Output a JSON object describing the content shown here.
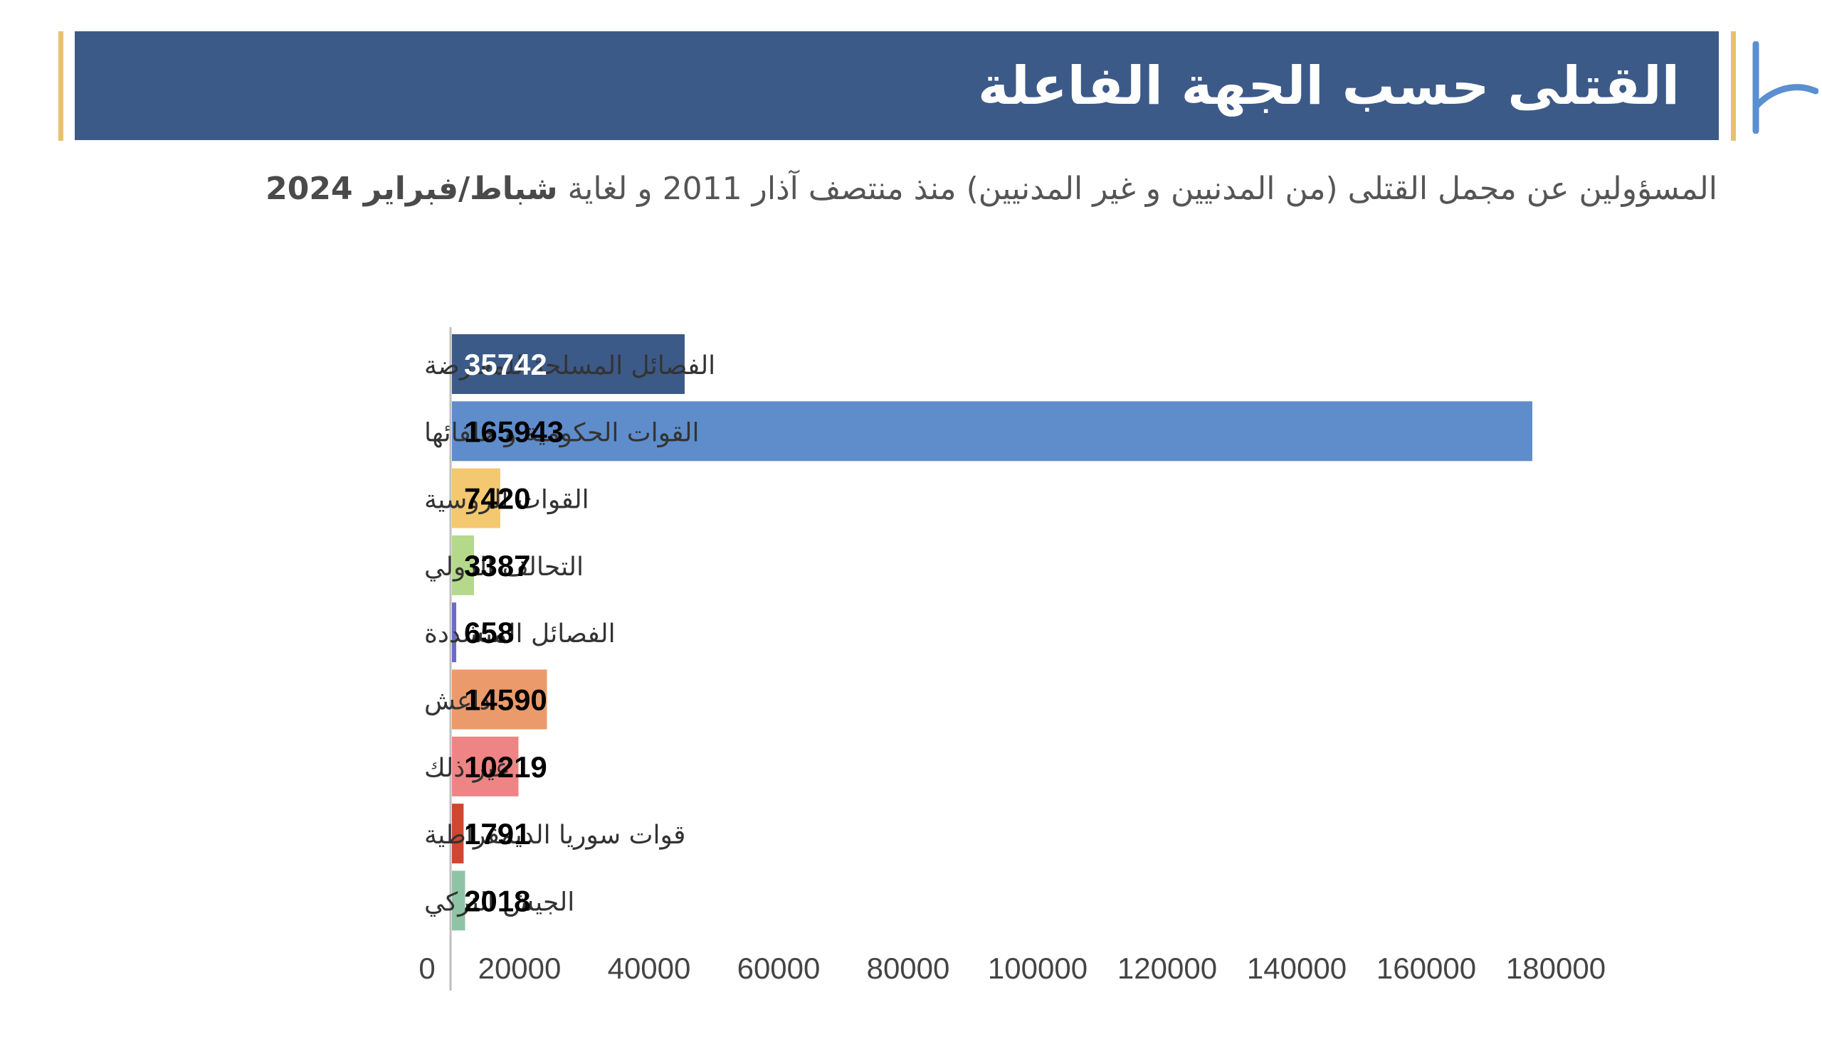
{
  "title": "القتلى حسب الجهة الفاعلة",
  "subtitle_prefix": "المسؤولين عن مجمل القتلى (من المدنيين و غير المدنيين) منذ منتصف آذار 2011 و لغاية ",
  "subtitle_bold": "شباط/فبراير 2024",
  "colors": {
    "banner": "#3c5a88",
    "accent": "#e9c16d",
    "logo": "#5b8fd0",
    "axis": "#bfbfbf"
  },
  "chart_data": {
    "type": "bar",
    "orientation": "horizontal",
    "categories": [
      "الفصائل المسلحة للمعارضة",
      "القوات الحكومية و حلفائها",
      "القوات الروسية",
      "التحالف الدولي",
      "الفصائل المتشددة",
      "داعش",
      "غير ذلك",
      "قوات سوريا الديمقراطية",
      "الجيش التركي"
    ],
    "values": [
      35742,
      165943,
      7420,
      3387,
      658,
      14590,
      10219,
      1791,
      2018
    ],
    "data_labels": [
      "35742",
      "165943",
      "7420",
      "3387",
      "658",
      "14590",
      "10219",
      "1791",
      "2018"
    ],
    "bar_colors": [
      "#3c5a88",
      "#5f8dcb",
      "#f4c870",
      "#b5d98a",
      "#6b6bc6",
      "#eb9a6b",
      "#ee8584",
      "#d0472f",
      "#8ec4a5"
    ],
    "label_colors": [
      "#ffffff",
      "#000000",
      "#000000",
      "#000000",
      "#000000",
      "#000000",
      "#000000",
      "#000000",
      "#000000"
    ],
    "xticks": [
      "0",
      "20000",
      "40000",
      "60000",
      "80000",
      "100000",
      "120000",
      "140000",
      "160000",
      "180000"
    ],
    "xlim": [
      0,
      180000
    ],
    "grid": false,
    "legend": "none"
  }
}
